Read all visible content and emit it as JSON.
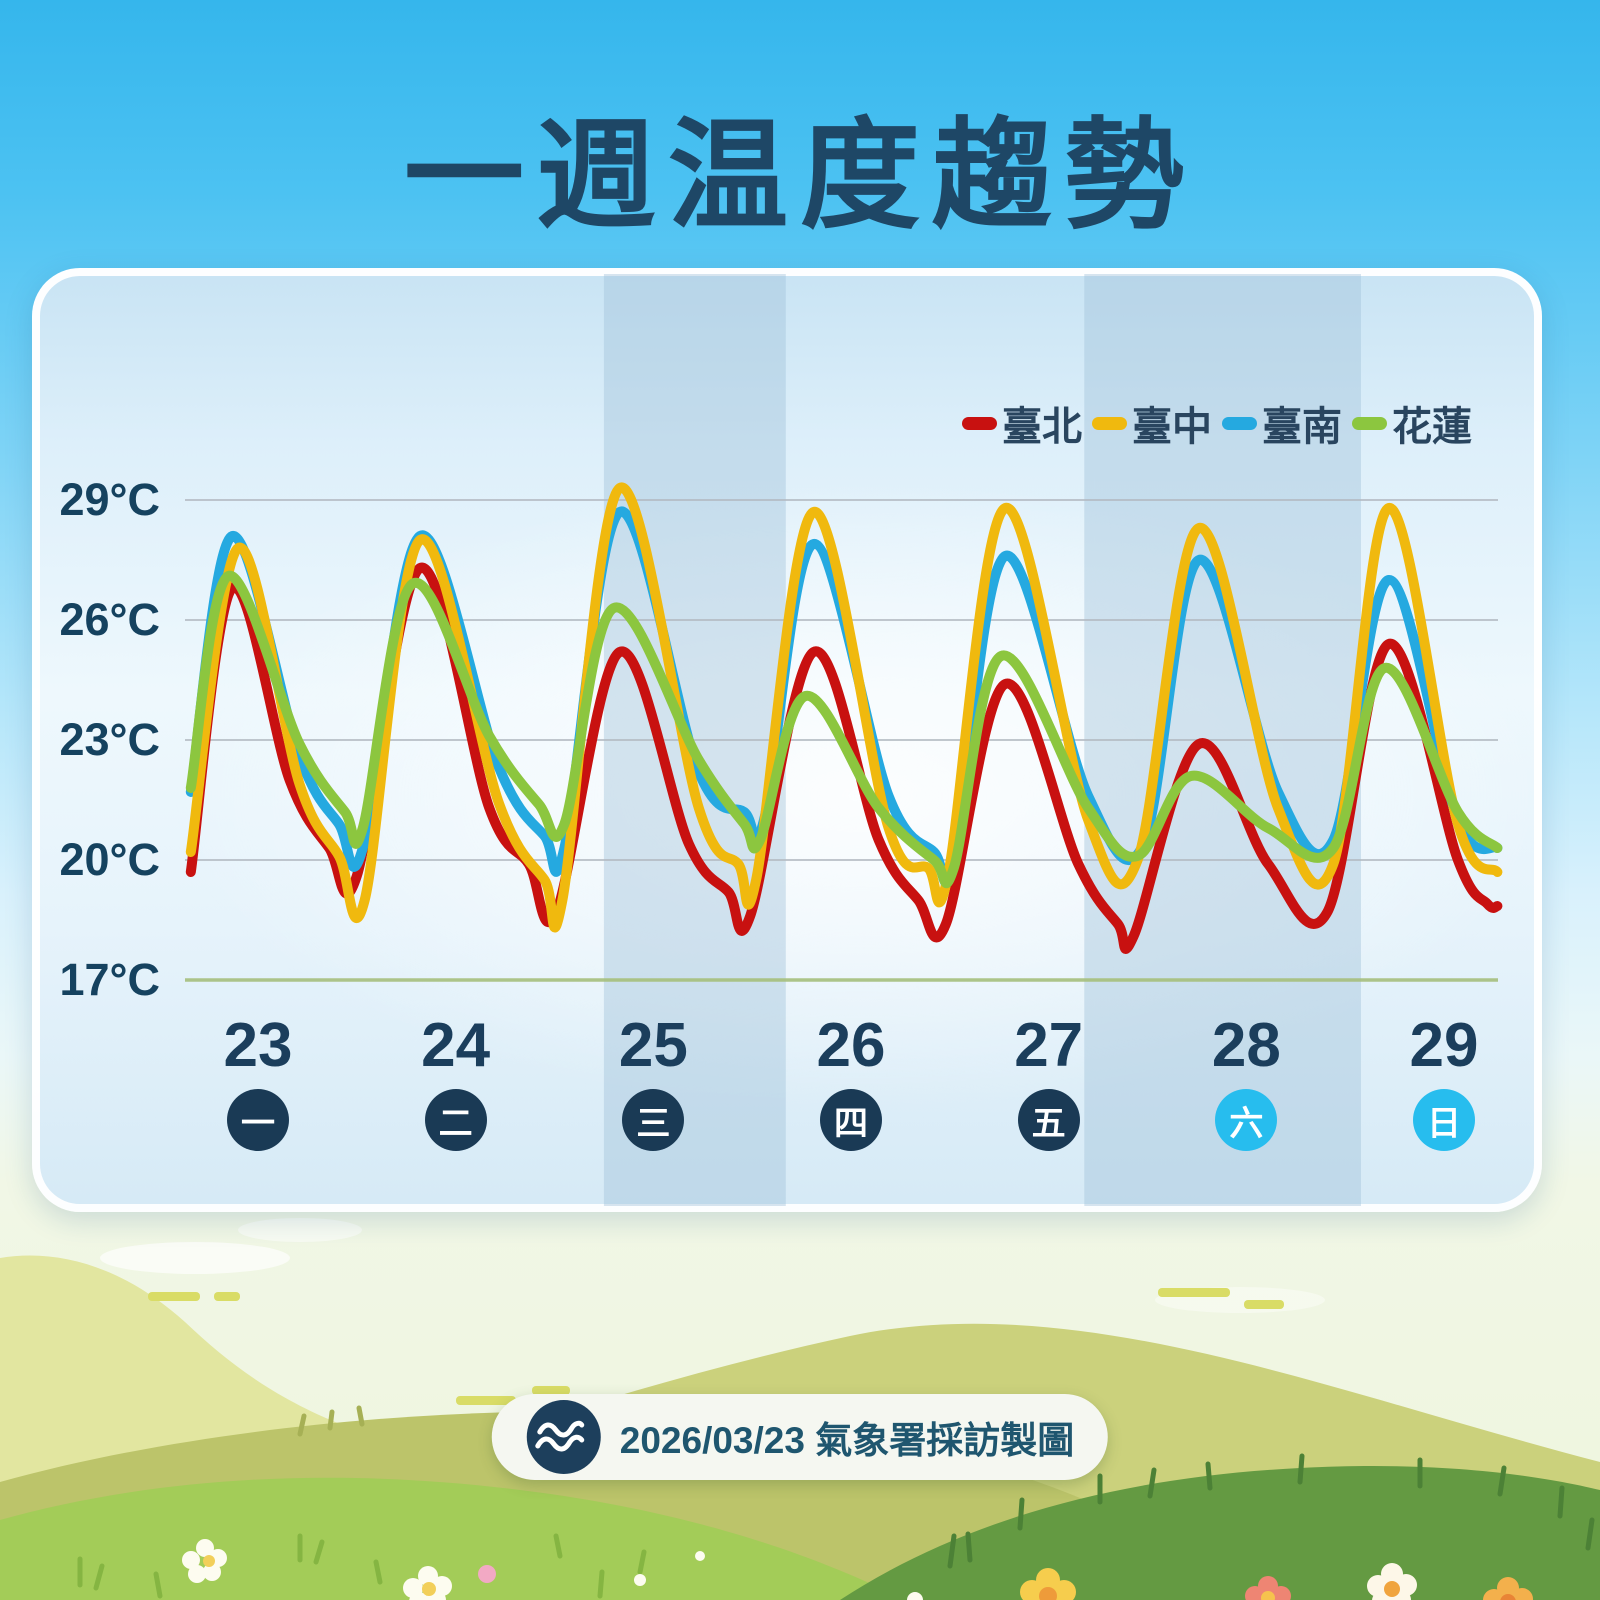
{
  "title": "一週温度趨勢",
  "colors": {
    "taipei_red": "#c81110",
    "taichung_yellow": "#f0b90e",
    "tainan_blue": "#25a9e0",
    "hualien_green": "#8cc63f",
    "navy_text": "#1e4766",
    "weekday_circle": "#1a3a55",
    "weekend_circle": "#27bdee",
    "band": "#9fc0d8",
    "gridline": "#b3bac2",
    "axis_bottom": "#a6bf7d"
  },
  "legend": [
    {
      "label": "臺北",
      "color": "#c81110"
    },
    {
      "label": "臺中",
      "color": "#f0b90e"
    },
    {
      "label": "臺南",
      "color": "#25a9e0"
    },
    {
      "label": "花蓮",
      "color": "#8cc63f"
    }
  ],
  "y_axis": {
    "labels": [
      "29°C",
      "26°C",
      "23°C",
      "20°C",
      "17°C"
    ],
    "values": [
      29,
      26,
      23,
      20,
      17
    ]
  },
  "x_axis": {
    "dates": [
      "23",
      "24",
      "25",
      "26",
      "27",
      "28",
      "29"
    ],
    "weekdays": [
      "一",
      "二",
      "三",
      "四",
      "五",
      "六",
      "日"
    ],
    "weekend": [
      false,
      false,
      false,
      false,
      false,
      true,
      true
    ]
  },
  "footer": {
    "logo_icon": "cwa-wave-logo",
    "text": "2026/03/23 氣象署採訪製圖"
  },
  "chart_data": {
    "type": "line",
    "title": "一週温度趨勢",
    "x_unit": "date of March (fractional day)",
    "xlim": [
      22.6,
      29.3
    ],
    "ylim": [
      17,
      29.5
    ],
    "grid": true,
    "legend_position": "top-right",
    "highlight_bands_days": [
      [
        24.75,
        25.67
      ],
      [
        27.18,
        28.58
      ]
    ],
    "series": [
      {
        "name": "臺北",
        "color": "#c81110",
        "points": [
          [
            22.66,
            19.7
          ],
          [
            22.87,
            26.8
          ],
          [
            23.16,
            22.0
          ],
          [
            23.36,
            20.3
          ],
          [
            23.5,
            19.6
          ],
          [
            23.82,
            27.3
          ],
          [
            24.17,
            21.3
          ],
          [
            24.37,
            19.9
          ],
          [
            24.51,
            18.7
          ],
          [
            24.83,
            25.2
          ],
          [
            25.18,
            20.4
          ],
          [
            25.38,
            19.2
          ],
          [
            25.49,
            18.6
          ],
          [
            25.81,
            25.2
          ],
          [
            26.14,
            20.5
          ],
          [
            26.34,
            19.0
          ],
          [
            26.48,
            18.4
          ],
          [
            26.78,
            24.4
          ],
          [
            27.15,
            19.9
          ],
          [
            27.35,
            18.4
          ],
          [
            27.43,
            18.1
          ],
          [
            27.76,
            22.9
          ],
          [
            28.11,
            19.9
          ],
          [
            28.41,
            18.7
          ],
          [
            28.72,
            25.4
          ],
          [
            29.07,
            20.0
          ],
          [
            29.22,
            18.9
          ],
          [
            29.27,
            18.85
          ]
        ]
      },
      {
        "name": "臺南",
        "color": "#25a9e0",
        "points": [
          [
            22.66,
            21.7
          ],
          [
            22.87,
            28.1
          ],
          [
            23.21,
            22.6
          ],
          [
            23.41,
            20.9
          ],
          [
            23.53,
            20.3
          ],
          [
            23.82,
            28.1
          ],
          [
            24.22,
            22.3
          ],
          [
            24.45,
            20.6
          ],
          [
            24.55,
            20.3
          ],
          [
            24.83,
            28.7
          ],
          [
            25.23,
            22.2
          ],
          [
            25.46,
            21.2
          ],
          [
            25.56,
            21.0
          ],
          [
            25.81,
            27.9
          ],
          [
            26.19,
            21.6
          ],
          [
            26.42,
            20.2
          ],
          [
            26.52,
            20.0
          ],
          [
            26.78,
            27.6
          ],
          [
            27.2,
            21.6
          ],
          [
            27.48,
            20.4
          ],
          [
            27.76,
            27.5
          ],
          [
            28.16,
            21.7
          ],
          [
            28.44,
            20.5
          ],
          [
            28.72,
            27.0
          ],
          [
            29.07,
            21.0
          ],
          [
            29.27,
            20.3
          ]
        ]
      },
      {
        "name": "臺中",
        "color": "#f0b90e",
        "points": [
          [
            22.66,
            20.2
          ],
          [
            22.9,
            27.8
          ],
          [
            23.21,
            21.9
          ],
          [
            23.41,
            20.1
          ],
          [
            23.54,
            19.0
          ],
          [
            23.82,
            28.0
          ],
          [
            24.22,
            21.4
          ],
          [
            24.45,
            19.5
          ],
          [
            24.54,
            19.0
          ],
          [
            24.83,
            29.3
          ],
          [
            25.23,
            21.3
          ],
          [
            25.43,
            19.9
          ],
          [
            25.52,
            19.5
          ],
          [
            25.81,
            28.7
          ],
          [
            26.19,
            20.8
          ],
          [
            26.39,
            19.8
          ],
          [
            26.49,
            19.6
          ],
          [
            26.78,
            28.8
          ],
          [
            27.2,
            21.0
          ],
          [
            27.45,
            20.0
          ],
          [
            27.76,
            28.3
          ],
          [
            28.16,
            21.3
          ],
          [
            28.44,
            19.9
          ],
          [
            28.72,
            28.8
          ],
          [
            29.07,
            20.9
          ],
          [
            29.27,
            19.7
          ]
        ]
      },
      {
        "name": "花蓮",
        "color": "#8cc63f",
        "points": [
          [
            22.66,
            21.8
          ],
          [
            22.85,
            27.1
          ],
          [
            23.21,
            22.9
          ],
          [
            23.44,
            21.2
          ],
          [
            23.53,
            20.8
          ],
          [
            23.78,
            26.9
          ],
          [
            24.17,
            23.1
          ],
          [
            24.42,
            21.4
          ],
          [
            24.55,
            20.9
          ],
          [
            24.8,
            26.3
          ],
          [
            25.23,
            22.5
          ],
          [
            25.46,
            20.9
          ],
          [
            25.54,
            20.5
          ],
          [
            25.77,
            24.1
          ],
          [
            26.14,
            21.3
          ],
          [
            26.42,
            20.0
          ],
          [
            26.52,
            19.8
          ],
          [
            26.76,
            25.1
          ],
          [
            27.2,
            21.3
          ],
          [
            27.45,
            20.1
          ],
          [
            27.72,
            22.1
          ],
          [
            28.11,
            20.8
          ],
          [
            28.44,
            20.3
          ],
          [
            28.7,
            24.8
          ],
          [
            29.07,
            21.2
          ],
          [
            29.27,
            20.3
          ]
        ]
      }
    ]
  }
}
